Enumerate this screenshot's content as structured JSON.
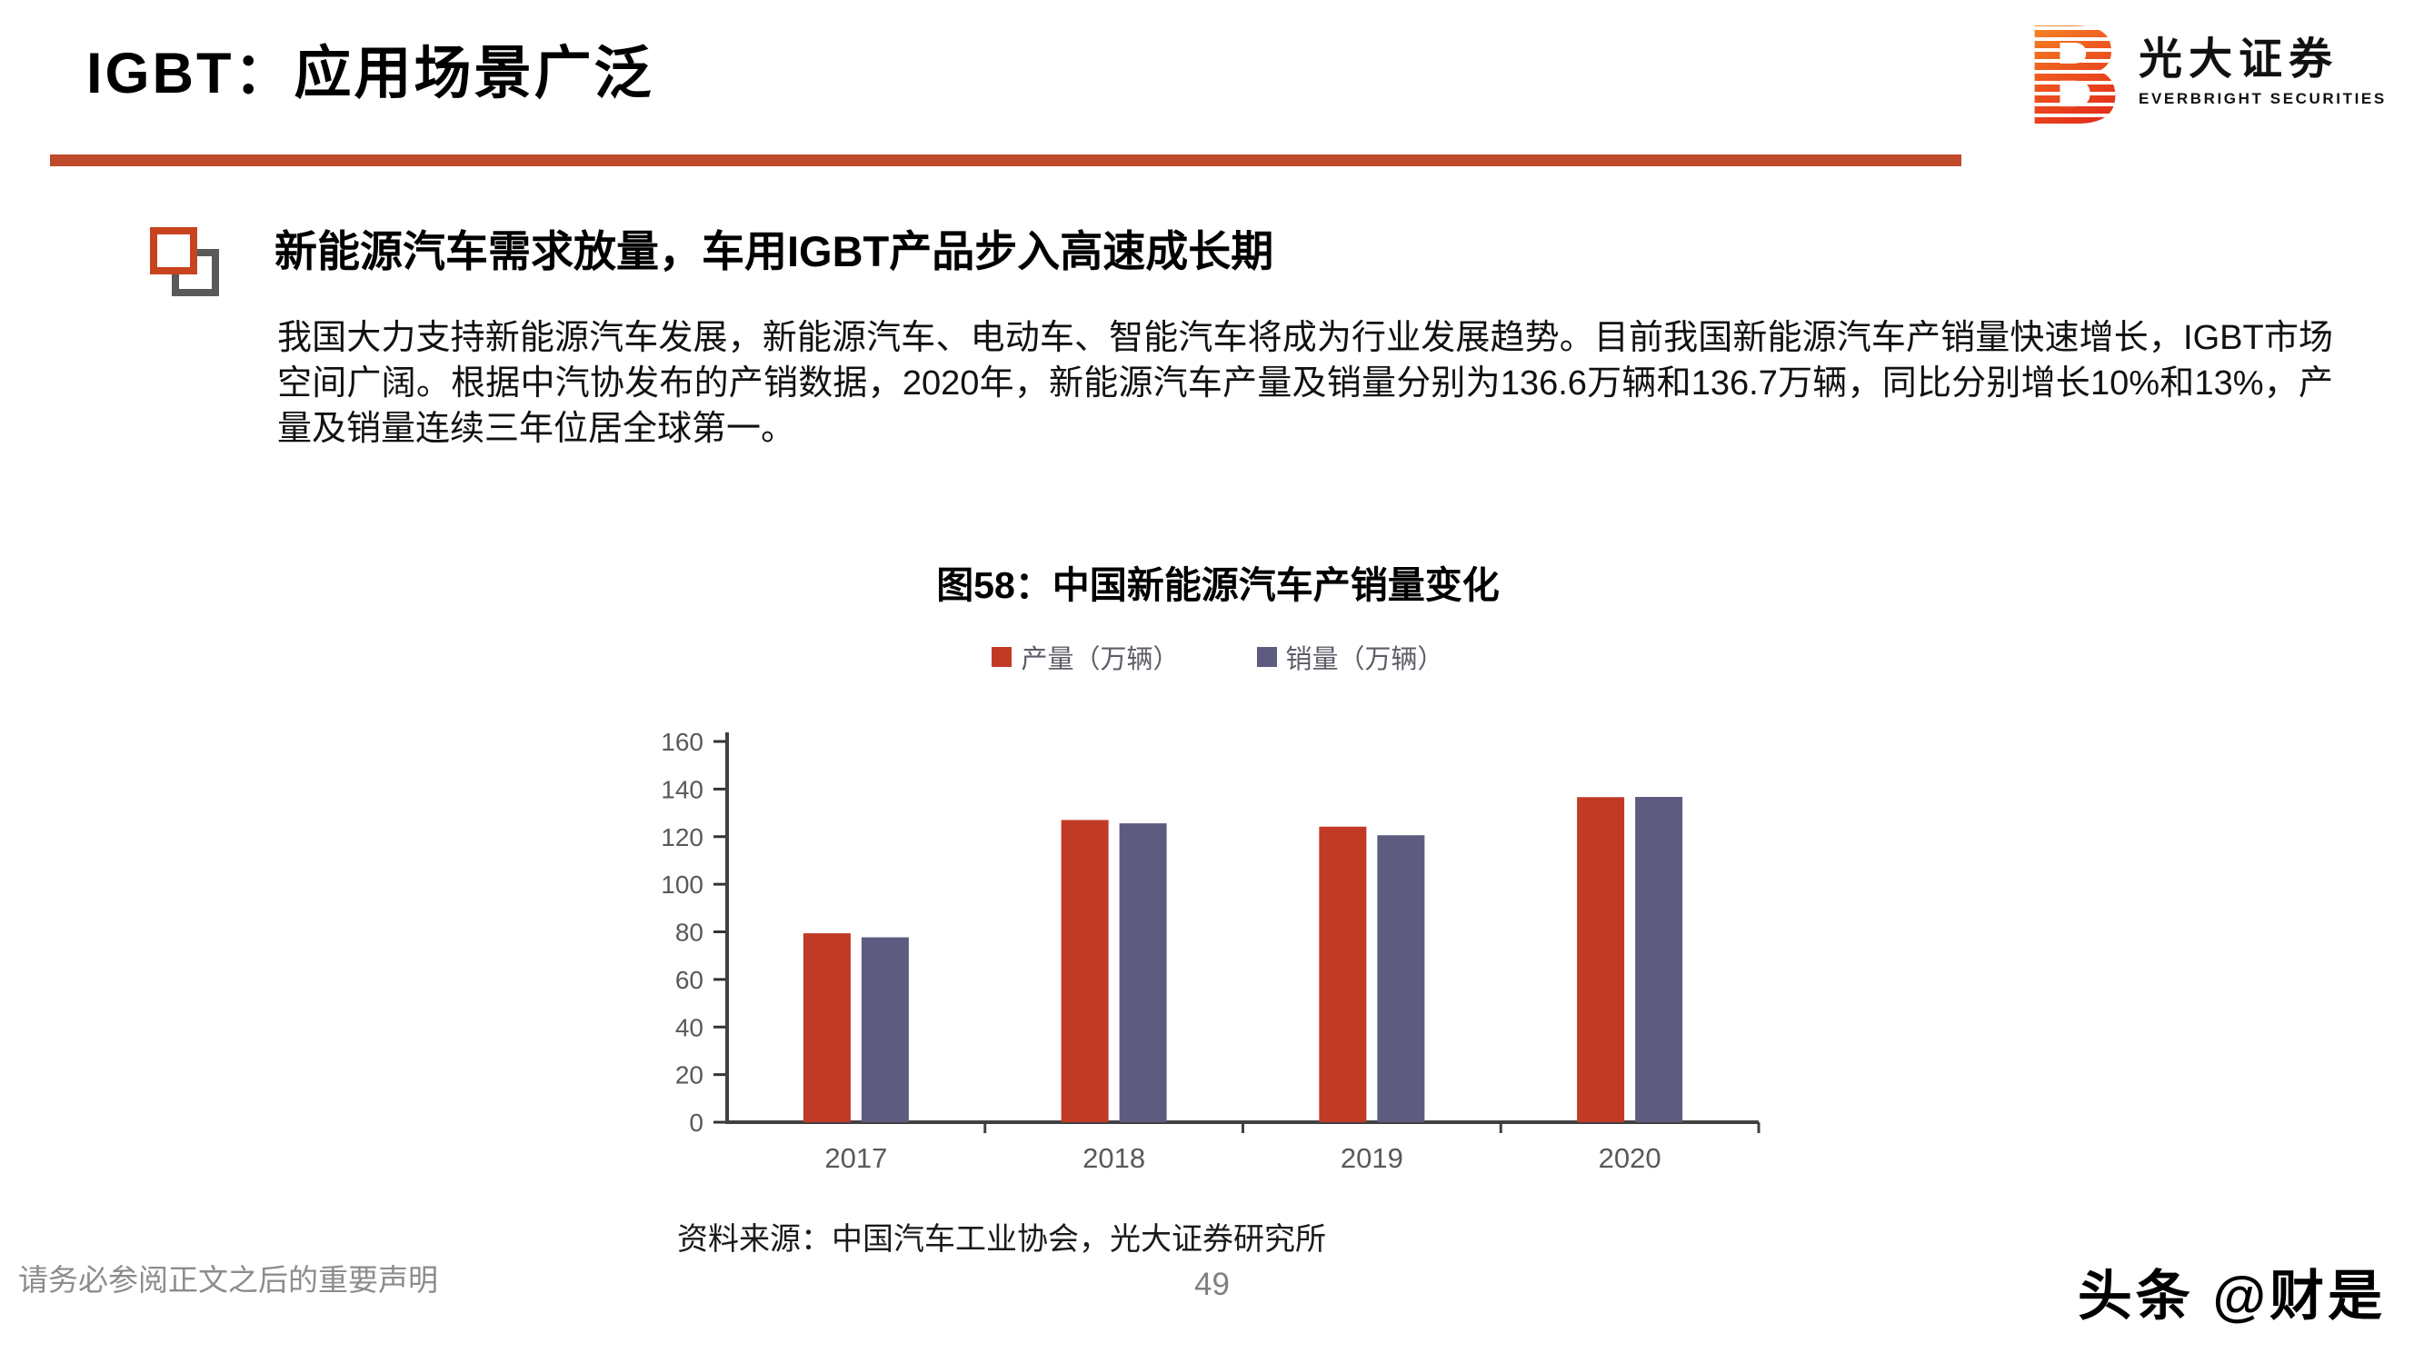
{
  "slide": {
    "title": "IGBT：应用场景广泛",
    "page_number": "49",
    "footer_disclaimer": "请务必参阅正文之后的重要声明",
    "watermark": "头条 @财是"
  },
  "logo": {
    "letter": "B",
    "cn": "光大证券",
    "en": "EVERBRIGHT SECURITIES"
  },
  "section": {
    "heading": "新能源汽车需求放量，车用IGBT产品步入高速成长期",
    "body": "我国大力支持新能源汽车发展，新能源汽车、电动车、智能汽车将成为行业发展趋势。目前我国新能源汽车产销量快速增长，IGBT市场空间广阔。根据中汽协发布的产销数据，2020年，新能源汽车产量及销量分别为136.6万辆和136.7万辆，同比分别增长10%和13%，产量及销量连续三年位居全球第一。"
  },
  "figure": {
    "title": "图58：中国新能源汽车产销量变化",
    "source": "资料来源：中国汽车工业协会，光大证券研究所"
  },
  "chart_data": {
    "type": "bar",
    "title": "图58：中国新能源汽车产销量变化",
    "categories": [
      "2017",
      "2018",
      "2019",
      "2020"
    ],
    "series": [
      {
        "name": "产量（万辆）",
        "color": "#c13a26",
        "values": [
          79.4,
          127.0,
          124.2,
          136.6
        ]
      },
      {
        "name": "销量（万辆）",
        "color": "#5d5c80",
        "values": [
          77.7,
          125.6,
          120.6,
          136.7
        ]
      }
    ],
    "xlabel": "",
    "ylabel": "",
    "ylim": [
      0,
      160
    ],
    "ytick_step": 20,
    "grid": false,
    "legend_position": "top"
  },
  "colors": {
    "accent_rule": "#bf4a2b",
    "bar_production": "#c13a26",
    "bar_sales": "#5d5c80",
    "bullet_orange": "#c8441f",
    "bullet_gray": "#595959",
    "logo_gradient_top": "#f9a02b",
    "logo_gradient_bottom": "#e1251c",
    "muted_text": "#808080",
    "axis_text": "#595959"
  }
}
